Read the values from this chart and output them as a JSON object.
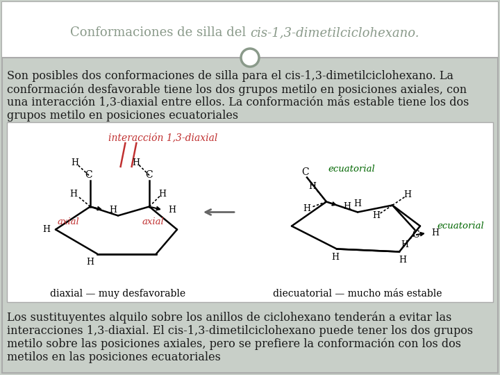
{
  "bg_color": "#c8cfc8",
  "header_bg": "#ffffff",
  "header_text_color": "#8a9a8a",
  "body_text_color": "#1a1a1a",
  "border_color": "#aaaaaa",
  "title_part1": "Conformaciones de silla del ",
  "title_italic": "cis",
  "title_part2": "-1,3-dimetilciclohexano.",
  "p1_line1": "Son posibles dos conformaciones de silla para el ",
  "p1_cis": "cis",
  "p1_line1b": "-1,3-dimetilciclohexano. La",
  "p1_line2": "conformación desfavorable tiene los dos grupos metilo en posiciones axiales, con",
  "p1_line3": "una interacción 1,3-diaxial entre ellos. La conformación más estable tiene los dos",
  "p1_line4": "grupos metilo en posiciones ecuatoriales",
  "p2_line1": "Los sustituyentes alquilo sobre los anillos de ciclohexano tenderán a evitar las",
  "p2_line2": "interacciones 1,3-diaxial. El ",
  "p2_cis": "cis",
  "p2_line2b": "-1,3-dimetilciclohexano puede tener los dos grupos",
  "p2_line3": "metilo sobre las posiciones axiales, pero se prefiere la conformación con los dos",
  "p2_line4": "metilos en las posiciones ecuatoriales",
  "red_color": "#c03030",
  "green_color": "#006600",
  "arrow_color": "#666666",
  "font_size_title": 13,
  "font_size_body": 11.5,
  "font_size_chem": 10,
  "font_size_label": 9.5
}
